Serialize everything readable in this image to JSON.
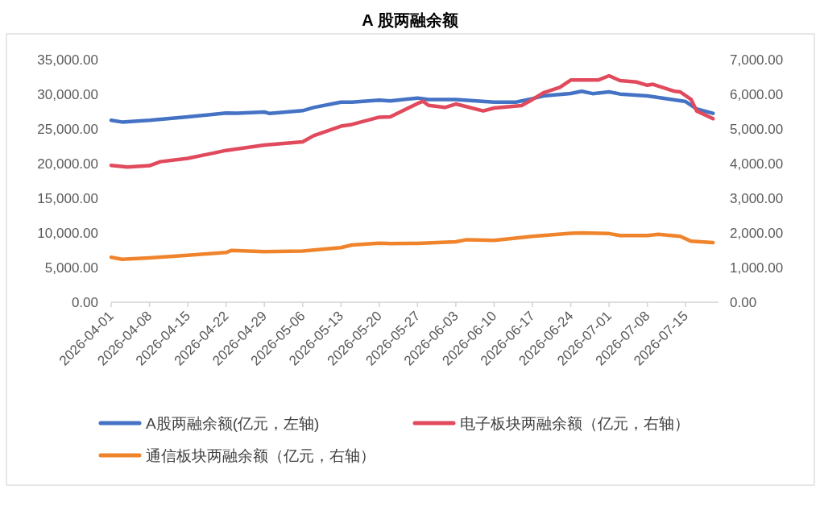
{
  "chart_data": {
    "type": "line",
    "title": "A 股两融余额",
    "xlim": [
      "2026-04-01",
      "2026-07-21"
    ],
    "xticks": [
      "2026-04-01",
      "2026-04-08",
      "2026-04-15",
      "2026-04-22",
      "2026-04-29",
      "2026-05-06",
      "2026-05-13",
      "2026-05-20",
      "2026-05-27",
      "2026-06-03",
      "2026-06-10",
      "2026-06-17",
      "2026-06-24",
      "2026-07-01",
      "2026-07-08",
      "2026-07-15"
    ],
    "ylim": [
      0,
      35000
    ],
    "yticks": [
      {
        "value": 0,
        "label": "0.00"
      },
      {
        "value": 5000,
        "label": "5,000.00"
      },
      {
        "value": 10000,
        "label": "10,000.00"
      },
      {
        "value": 15000,
        "label": "15,000.00"
      },
      {
        "value": 20000,
        "label": "20,000.00"
      },
      {
        "value": 25000,
        "label": "25,000.00"
      },
      {
        "value": 30000,
        "label": "30,000.00"
      },
      {
        "value": 35000,
        "label": "35,000.00"
      }
    ],
    "y2lim": [
      0,
      7000
    ],
    "y2ticks": [
      {
        "value": 0,
        "label": "0.00"
      },
      {
        "value": 1000,
        "label": "1,000.00"
      },
      {
        "value": 2000,
        "label": "2,000.00"
      },
      {
        "value": 3000,
        "label": "3,000.00"
      },
      {
        "value": 4000,
        "label": "4,000.00"
      },
      {
        "value": 5000,
        "label": "5,000.00"
      },
      {
        "value": 6000,
        "label": "6,000.00"
      },
      {
        "value": 7000,
        "label": "7,000.00"
      }
    ],
    "legend": "bottom",
    "marker": "none",
    "line_style": "solid",
    "series": [
      {
        "name": "A股两融余额(亿元，左轴)",
        "color": "#4472c4",
        "x": [
          "2026-04-01",
          "2026-04-03",
          "2026-04-08",
          "2026-04-15",
          "2026-04-22",
          "2026-04-24",
          "2026-04-29",
          "2026-04-30",
          "2026-05-06",
          "2026-05-08",
          "2026-05-13",
          "2026-05-15",
          "2026-05-20",
          "2026-05-22",
          "2026-05-27",
          "2026-05-29",
          "2026-06-03",
          "2026-06-10",
          "2026-06-14",
          "2026-06-17",
          "2026-06-19",
          "2026-06-24",
          "2026-06-26",
          "2026-06-28",
          "2026-07-01",
          "2026-07-03",
          "2026-07-08",
          "2026-07-15",
          "2026-07-17",
          "2026-07-20"
        ],
        "values": [
          26250,
          26000,
          26250,
          26740,
          27300,
          27270,
          27440,
          27230,
          27640,
          28100,
          28870,
          28870,
          29150,
          29030,
          29460,
          29250,
          29250,
          28870,
          28870,
          29380,
          29770,
          30120,
          30430,
          30100,
          30350,
          30040,
          29770,
          28950,
          27900,
          27250
        ]
      },
      {
        "name": "电子板块两融余额（亿元，右轴）",
        "color": "#e04a5c",
        "axis": "y2",
        "x": [
          "2026-04-01",
          "2026-04-04",
          "2026-04-08",
          "2026-04-10",
          "2026-04-15",
          "2026-04-22",
          "2026-04-29",
          "2026-05-06",
          "2026-05-08",
          "2026-05-13",
          "2026-05-15",
          "2026-05-20",
          "2026-05-22",
          "2026-05-27",
          "2026-05-28",
          "2026-05-29",
          "2026-06-01",
          "2026-06-03",
          "2026-06-08",
          "2026-06-10",
          "2026-06-15",
          "2026-06-17",
          "2026-06-19",
          "2026-06-22",
          "2026-06-24",
          "2026-06-29",
          "2026-07-01",
          "2026-07-03",
          "2026-07-06",
          "2026-07-08",
          "2026-07-09",
          "2026-07-13",
          "2026-07-14",
          "2026-07-16",
          "2026-07-17",
          "2026-07-20"
        ],
        "values": [
          3950,
          3900,
          3940,
          4055,
          4150,
          4380,
          4535,
          4630,
          4805,
          5080,
          5130,
          5340,
          5350,
          5735,
          5800,
          5680,
          5620,
          5720,
          5520,
          5605,
          5675,
          5850,
          6045,
          6200,
          6410,
          6410,
          6535,
          6395,
          6355,
          6260,
          6290,
          6085,
          6070,
          5850,
          5520,
          5295
        ]
      },
      {
        "name": "通信板块两融余额（亿元，右轴）",
        "color": "#f0842c",
        "axis": "y2",
        "x": [
          "2026-04-01",
          "2026-04-03",
          "2026-04-08",
          "2026-04-15",
          "2026-04-22",
          "2026-04-23",
          "2026-04-29",
          "2026-05-06",
          "2026-05-13",
          "2026-05-15",
          "2026-05-20",
          "2026-05-22",
          "2026-05-27",
          "2026-06-03",
          "2026-06-05",
          "2026-06-10",
          "2026-06-17",
          "2026-06-24",
          "2026-06-26",
          "2026-07-01",
          "2026-07-03",
          "2026-07-08",
          "2026-07-10",
          "2026-07-14",
          "2026-07-16",
          "2026-07-20"
        ],
        "values": [
          1295,
          1240,
          1280,
          1355,
          1435,
          1495,
          1460,
          1475,
          1575,
          1650,
          1705,
          1690,
          1700,
          1745,
          1805,
          1785,
          1900,
          1990,
          2000,
          1980,
          1925,
          1925,
          1960,
          1900,
          1760,
          1720
        ]
      }
    ]
  }
}
